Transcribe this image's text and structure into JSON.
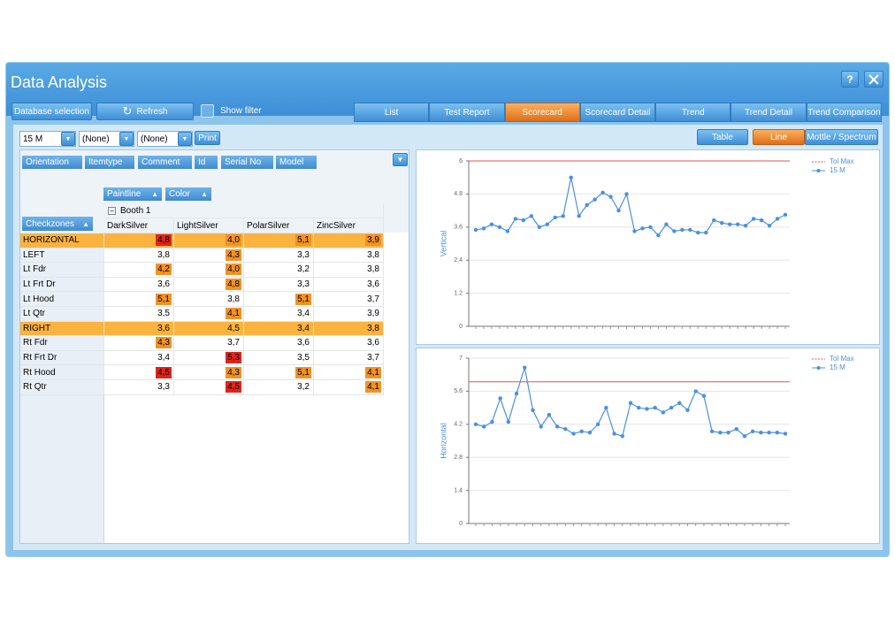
{
  "window": {
    "title": "Data Analysis",
    "help": "?"
  },
  "toolbar": {
    "database_selection": "Database selection",
    "refresh": "Refresh",
    "show_filter": "Show filter",
    "tabs": [
      {
        "label": "List"
      },
      {
        "label": "Test Report"
      },
      {
        "label": "Scorecard",
        "active": true
      },
      {
        "label": "Scorecard Detail"
      },
      {
        "label": "Trend"
      },
      {
        "label": "Trend Detail"
      },
      {
        "label": "Trend Comparison"
      }
    ]
  },
  "filters": {
    "dropdowns": [
      "15 M",
      "(None)",
      "(None)"
    ],
    "print": "Print",
    "views": [
      {
        "label": "Table"
      },
      {
        "label": "Line",
        "active": true
      },
      {
        "label": "Mottle / Spectrum"
      }
    ]
  },
  "pivot": {
    "field_buttons": [
      "Orientation",
      "Itemtype",
      "Comment",
      "Id",
      "Serial No",
      "Model"
    ],
    "column_fields": [
      "Paintline",
      "Color"
    ],
    "row_field": "Checkzones",
    "group": "Booth 1",
    "columns": [
      "DarkSilver",
      "LightSilver",
      "PolarSilver",
      "ZincSilver"
    ],
    "rows": [
      {
        "label": "HORIZONTAL",
        "highlight": true,
        "cells": [
          {
            "text": "4,8",
            "color": "#e2231a"
          },
          {
            "text": "4,0",
            "color": "#f39223"
          },
          {
            "text": "5,1",
            "color": "#f39223"
          },
          {
            "text": "3,9",
            "color": "#f39223"
          }
        ]
      },
      {
        "label": "LEFT",
        "cells": [
          {
            "text": "3,8"
          },
          {
            "text": "4,3",
            "color": "#f39223"
          },
          {
            "text": "3,3"
          },
          {
            "text": "3,8"
          }
        ]
      },
      {
        "label": "Lt Fdr",
        "cells": [
          {
            "text": "4,2",
            "color": "#f39223"
          },
          {
            "text": "4,0",
            "color": "#f39223"
          },
          {
            "text": "3,2"
          },
          {
            "text": "3,8"
          }
        ]
      },
      {
        "label": "Lt Frt Dr",
        "cells": [
          {
            "text": "3,6"
          },
          {
            "text": "4,8",
            "color": "#f39223"
          },
          {
            "text": "3,3"
          },
          {
            "text": "3,6"
          }
        ]
      },
      {
        "label": "Lt Hood",
        "cells": [
          {
            "text": "5,1",
            "color": "#f39223"
          },
          {
            "text": "3,8"
          },
          {
            "text": "5,1",
            "color": "#f39223"
          },
          {
            "text": "3,7"
          }
        ]
      },
      {
        "label": "Lt Qtr",
        "cells": [
          {
            "text": "3,5"
          },
          {
            "text": "4,1",
            "color": "#f39223"
          },
          {
            "text": "3,4"
          },
          {
            "text": "3,9"
          }
        ]
      },
      {
        "label": "RIGHT",
        "highlight": true,
        "cells": [
          {
            "text": "3,6"
          },
          {
            "text": "4,5"
          },
          {
            "text": "3,4"
          },
          {
            "text": "3,8"
          }
        ]
      },
      {
        "label": "Rt Fdr",
        "cells": [
          {
            "text": "4,3",
            "color": "#f39223"
          },
          {
            "text": "3,7"
          },
          {
            "text": "3,6"
          },
          {
            "text": "3,6"
          }
        ]
      },
      {
        "label": "Rt Frt Dr",
        "cells": [
          {
            "text": "3,4"
          },
          {
            "text": "5,3",
            "color": "#e2231a"
          },
          {
            "text": "3,5"
          },
          {
            "text": "3,7"
          }
        ]
      },
      {
        "label": "Rt Hood",
        "cells": [
          {
            "text": "4,5",
            "color": "#e2231a"
          },
          {
            "text": "4,3",
            "color": "#f39223"
          },
          {
            "text": "5,1",
            "color": "#f39223"
          },
          {
            "text": "4,1",
            "color": "#f39223"
          }
        ]
      },
      {
        "label": "Rt Qtr",
        "cells": [
          {
            "text": "3,3"
          },
          {
            "text": "4,5",
            "color": "#e2231a"
          },
          {
            "text": "3,2"
          },
          {
            "text": "4,1",
            "color": "#f39223"
          }
        ]
      }
    ]
  },
  "chart_data": [
    {
      "type": "line",
      "y_label": "Vertical",
      "ylim": [
        0,
        6
      ],
      "yticks": [
        0,
        1.2,
        2.4,
        3.6,
        4.8,
        6
      ],
      "grid": true,
      "tol_max": {
        "name": "Tol Max",
        "value": 6,
        "color": "#e05555"
      },
      "series": [
        {
          "name": "15 M",
          "color": "#4a90e2",
          "values": [
            3.5,
            3.55,
            3.7,
            3.6,
            3.45,
            3.9,
            3.85,
            4.0,
            3.6,
            3.7,
            3.95,
            4.0,
            5.4,
            4.0,
            4.4,
            4.6,
            4.85,
            4.7,
            4.2,
            4.8,
            3.45,
            3.55,
            3.6,
            3.3,
            3.7,
            3.45,
            3.5,
            3.5,
            3.4,
            3.4,
            3.85,
            3.75,
            3.7,
            3.7,
            3.65,
            3.9,
            3.85,
            3.65,
            3.9,
            4.05
          ]
        }
      ]
    },
    {
      "type": "line",
      "y_label": "Horizontal",
      "ylim": [
        0,
        7
      ],
      "yticks": [
        0,
        1.4,
        2.8,
        4.2,
        5.6,
        7
      ],
      "grid": true,
      "tol_max": {
        "name": "Tol Max",
        "value": 6,
        "color": "#e05555"
      },
      "series": [
        {
          "name": "15 M",
          "color": "#4a90e2",
          "values": [
            4.2,
            4.1,
            4.3,
            5.3,
            4.3,
            5.5,
            6.6,
            4.8,
            4.1,
            4.6,
            4.1,
            4.0,
            3.8,
            3.9,
            3.85,
            4.2,
            4.9,
            3.8,
            3.7,
            5.1,
            4.9,
            4.85,
            4.9,
            4.7,
            4.9,
            5.1,
            4.8,
            5.6,
            5.4,
            3.9,
            3.85,
            3.85,
            4.0,
            3.7,
            3.9,
            3.85,
            3.85,
            3.85,
            3.8
          ]
        }
      ]
    }
  ]
}
